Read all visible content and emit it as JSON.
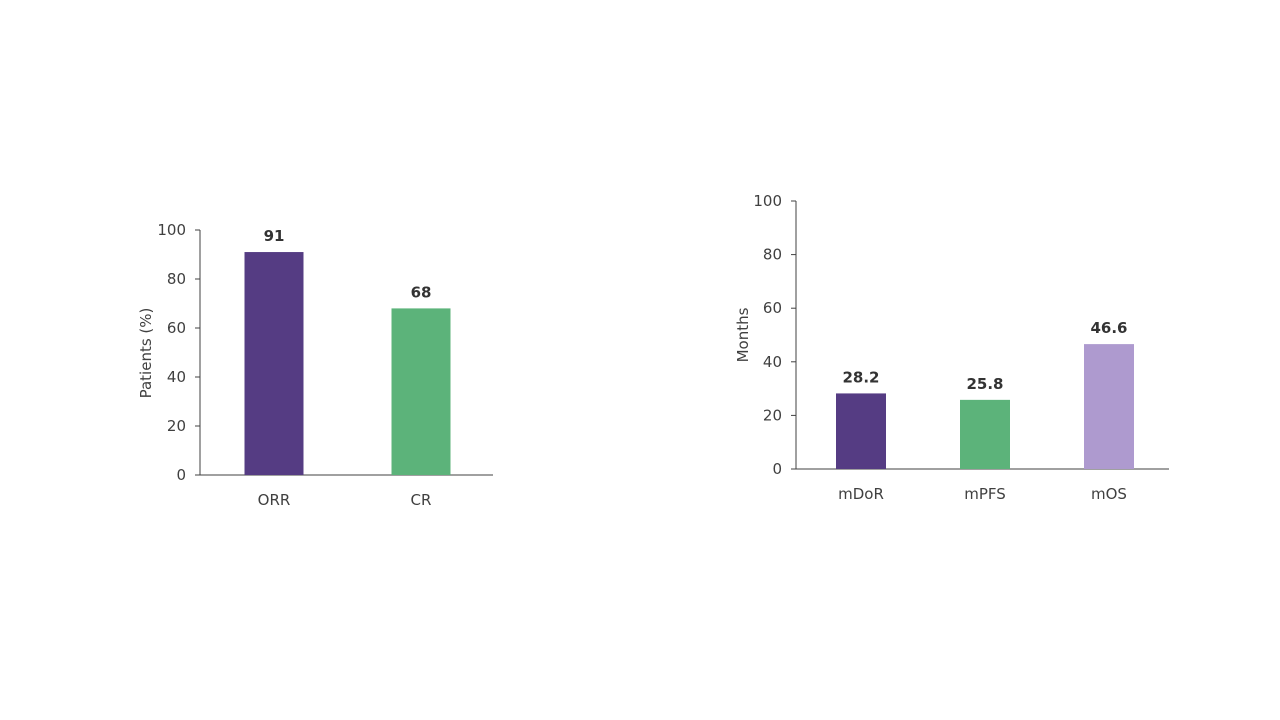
{
  "chart_data": [
    {
      "type": "bar",
      "title": "",
      "xlabel": "",
      "ylabel": "Patients (%)",
      "categories": [
        "ORR",
        "CR"
      ],
      "values": [
        91,
        68
      ],
      "value_labels": [
        "91",
        "68"
      ],
      "colors": [
        "#553c83",
        "#5cb37a"
      ],
      "ylim": [
        0,
        100
      ],
      "yticks": [
        0,
        20,
        40,
        60,
        80,
        100
      ],
      "grid": false,
      "legend": "none"
    },
    {
      "type": "bar",
      "title": "",
      "xlabel": "",
      "ylabel": "Months",
      "categories": [
        "mDoR",
        "mPFS",
        "mOS"
      ],
      "values": [
        28.2,
        25.8,
        46.6
      ],
      "value_labels": [
        "28.2",
        "25.8",
        "46.6"
      ],
      "colors": [
        "#553c83",
        "#5cb37a",
        "#ae9acf"
      ],
      "ylim": [
        0,
        100
      ],
      "yticks": [
        0,
        20,
        40,
        60,
        80,
        100
      ],
      "grid": false,
      "legend": "none"
    }
  ]
}
